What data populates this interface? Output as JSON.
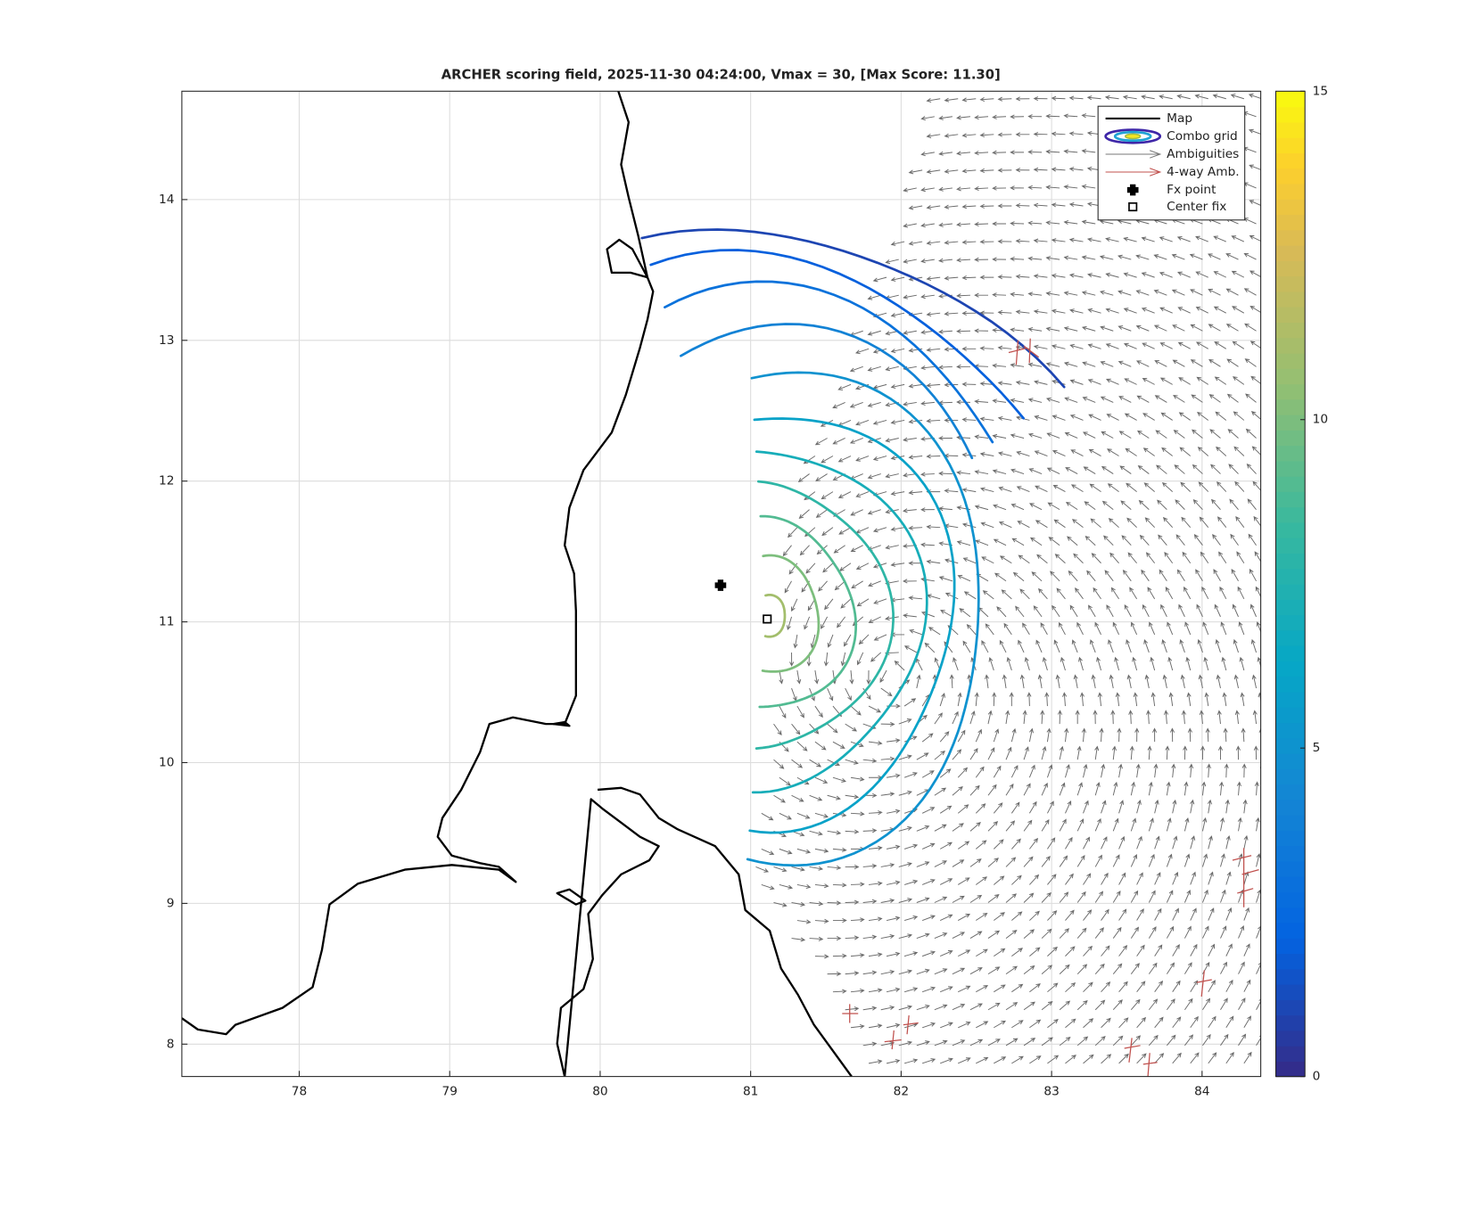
{
  "chart_data": {
    "type": "map",
    "title": "ARCHER scoring field, 2025-11-30 04:24:00, Vmax = 30, [Max Score: 11.30]",
    "xlim": [
      77.22,
      84.39
    ],
    "ylim": [
      7.77,
      14.77
    ],
    "xticks": [
      78,
      79,
      80,
      81,
      82,
      83,
      84
    ],
    "yticks": [
      8,
      9,
      10,
      11,
      12,
      13,
      14
    ],
    "grid": true,
    "legend": [
      "Map",
      "Combo grid",
      "Ambiguities",
      "4-way Amb.",
      "Fx point",
      "Center fix"
    ],
    "fx_point": {
      "x": 80.8,
      "y": 11.26
    },
    "center_fix": {
      "x": 81.11,
      "y": 11.02
    },
    "contour_levels": [
      1,
      2,
      3,
      4,
      5,
      6,
      7,
      8,
      9,
      10,
      11
    ],
    "colorbar": {
      "clim": [
        0,
        15
      ],
      "ticks": [
        0,
        5,
        10,
        15
      ]
    }
  }
}
